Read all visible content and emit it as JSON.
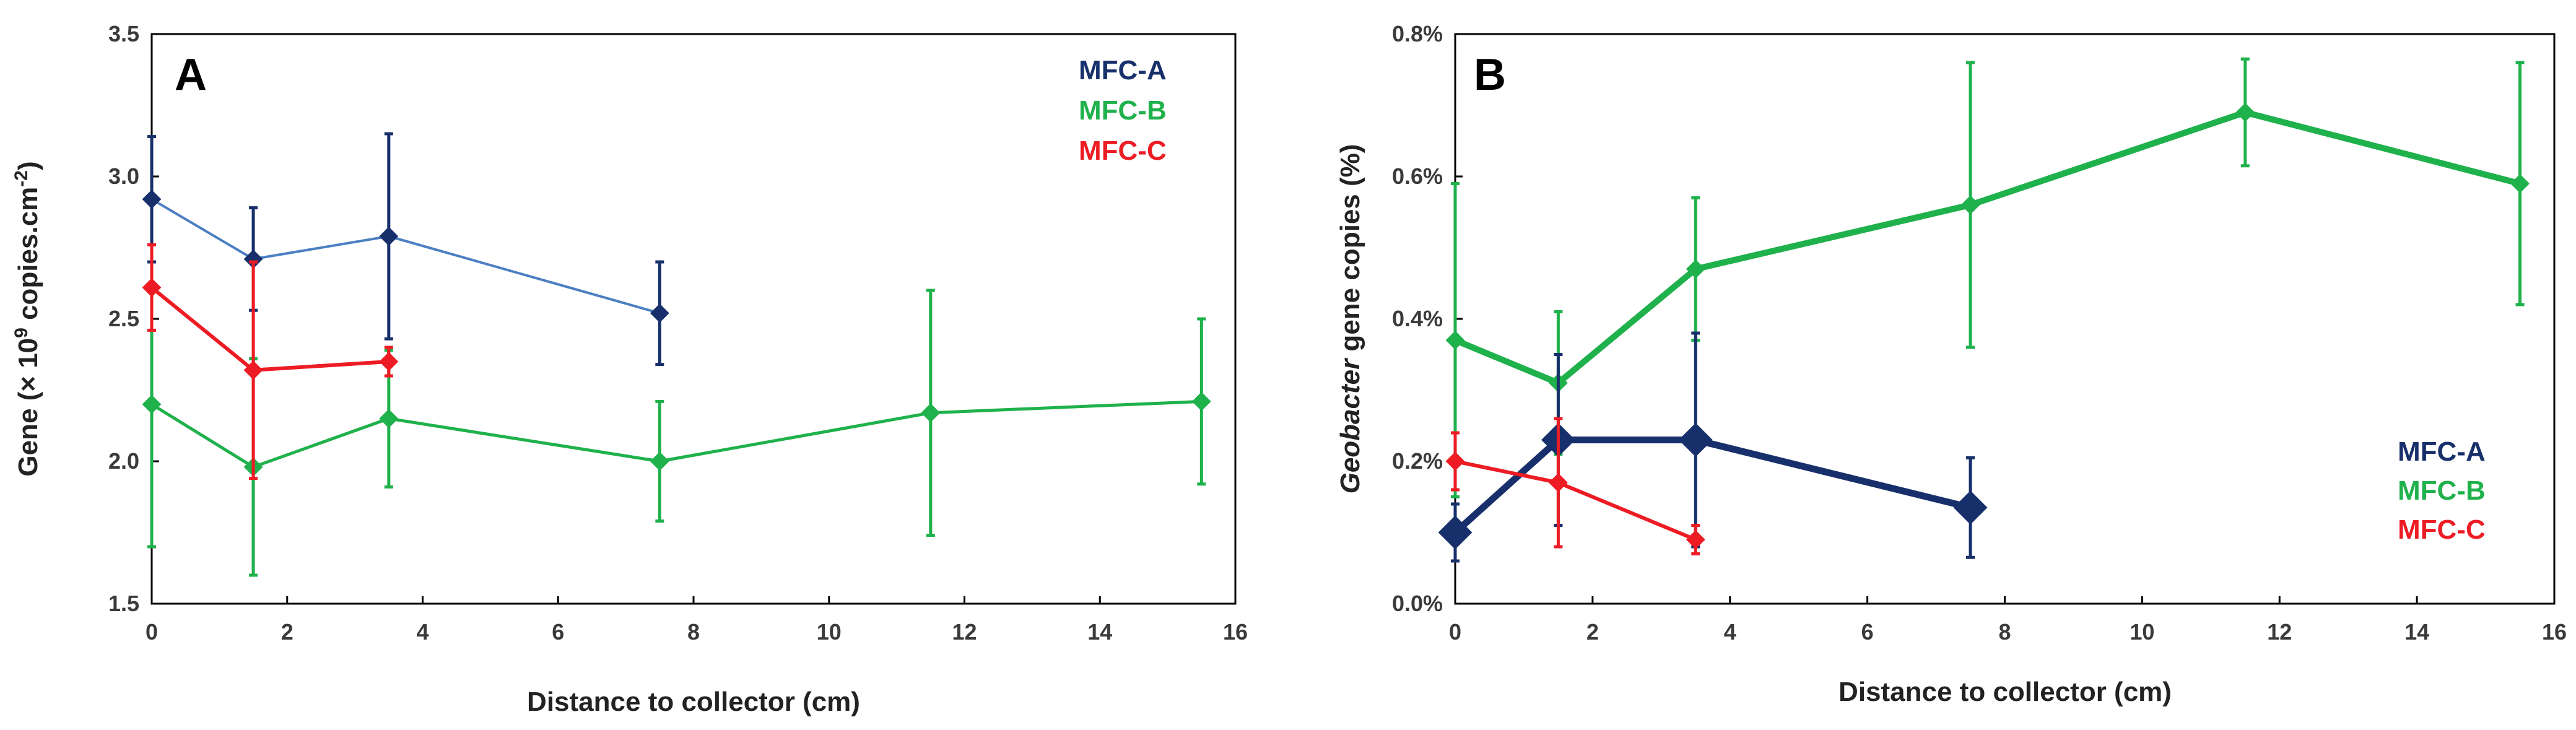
{
  "colors": {
    "MFC-A": "#17306b",
    "MFC-B": "#1fb14b",
    "MFC-C": "#ed1c24",
    "line_A_panel_A": "#4b7fc2"
  },
  "chart_data": [
    {
      "type": "line",
      "panel_label": "A",
      "xlabel": "Distance to collector (cm)",
      "ylabel_parts": {
        "pre": "Gene (× 10",
        "sup": "9",
        "mid": " copies.cm",
        "sup2": "-2",
        "post": ")"
      },
      "xlim": [
        0,
        16
      ],
      "ylim": [
        1.5,
        3.5
      ],
      "x_ticks": [
        "0",
        "2",
        "4",
        "6",
        "8",
        "10",
        "12",
        "14",
        "16"
      ],
      "y_ticks": [
        "1.5",
        "2.0",
        "2.5",
        "3.0",
        "3.5"
      ],
      "legend_position": "top-right",
      "series": [
        {
          "name": "MFC-A",
          "x": [
            0,
            1.5,
            3.5,
            7.5
          ],
          "y": [
            2.92,
            2.71,
            2.79,
            2.52
          ],
          "err": [
            0.22,
            0.18,
            0.36,
            0.18
          ]
        },
        {
          "name": "MFC-B",
          "x": [
            0,
            1.5,
            3.5,
            7.5,
            11.5,
            15.5
          ],
          "y": [
            2.2,
            1.98,
            2.15,
            2.0,
            2.17,
            2.21
          ],
          "err": [
            0.5,
            0.38,
            0.24,
            0.21,
            0.43,
            0.29
          ]
        },
        {
          "name": "MFC-C",
          "x": [
            0,
            1.5,
            3.5
          ],
          "y": [
            2.61,
            2.32,
            2.35
          ],
          "err": [
            0.15,
            0.38,
            0.05
          ]
        }
      ]
    },
    {
      "type": "line",
      "panel_label": "B",
      "xlabel": "Distance to collector (cm)",
      "ylabel_parts": {
        "italic": "Geobacter",
        "rest": " gene copies (%)"
      },
      "xlim": [
        0,
        16
      ],
      "ylim": [
        0,
        0.8
      ],
      "x_ticks": [
        "0",
        "2",
        "4",
        "6",
        "8",
        "10",
        "12",
        "14",
        "16"
      ],
      "y_ticks": [
        "0.0%",
        "0.2%",
        "0.4%",
        "0.6%",
        "0.8%"
      ],
      "legend_position": "bottom-right",
      "series": [
        {
          "name": "MFC-A",
          "x": [
            0,
            1.5,
            3.5,
            7.5
          ],
          "y": [
            0.1,
            0.23,
            0.23,
            0.135
          ],
          "err": [
            0.04,
            0.12,
            0.15,
            0.07
          ]
        },
        {
          "name": "MFC-B",
          "x": [
            0,
            1.5,
            3.5,
            7.5,
            11.5,
            15.5
          ],
          "y": [
            0.37,
            0.31,
            0.47,
            0.56,
            0.69,
            0.59
          ],
          "err": [
            0.22,
            0.1,
            0.1,
            0.2,
            0.075,
            0.17
          ]
        },
        {
          "name": "MFC-C",
          "x": [
            0,
            1.5,
            3.5
          ],
          "y": [
            0.2,
            0.17,
            0.09
          ],
          "err": [
            0.04,
            0.09,
            0.02
          ]
        }
      ]
    }
  ]
}
